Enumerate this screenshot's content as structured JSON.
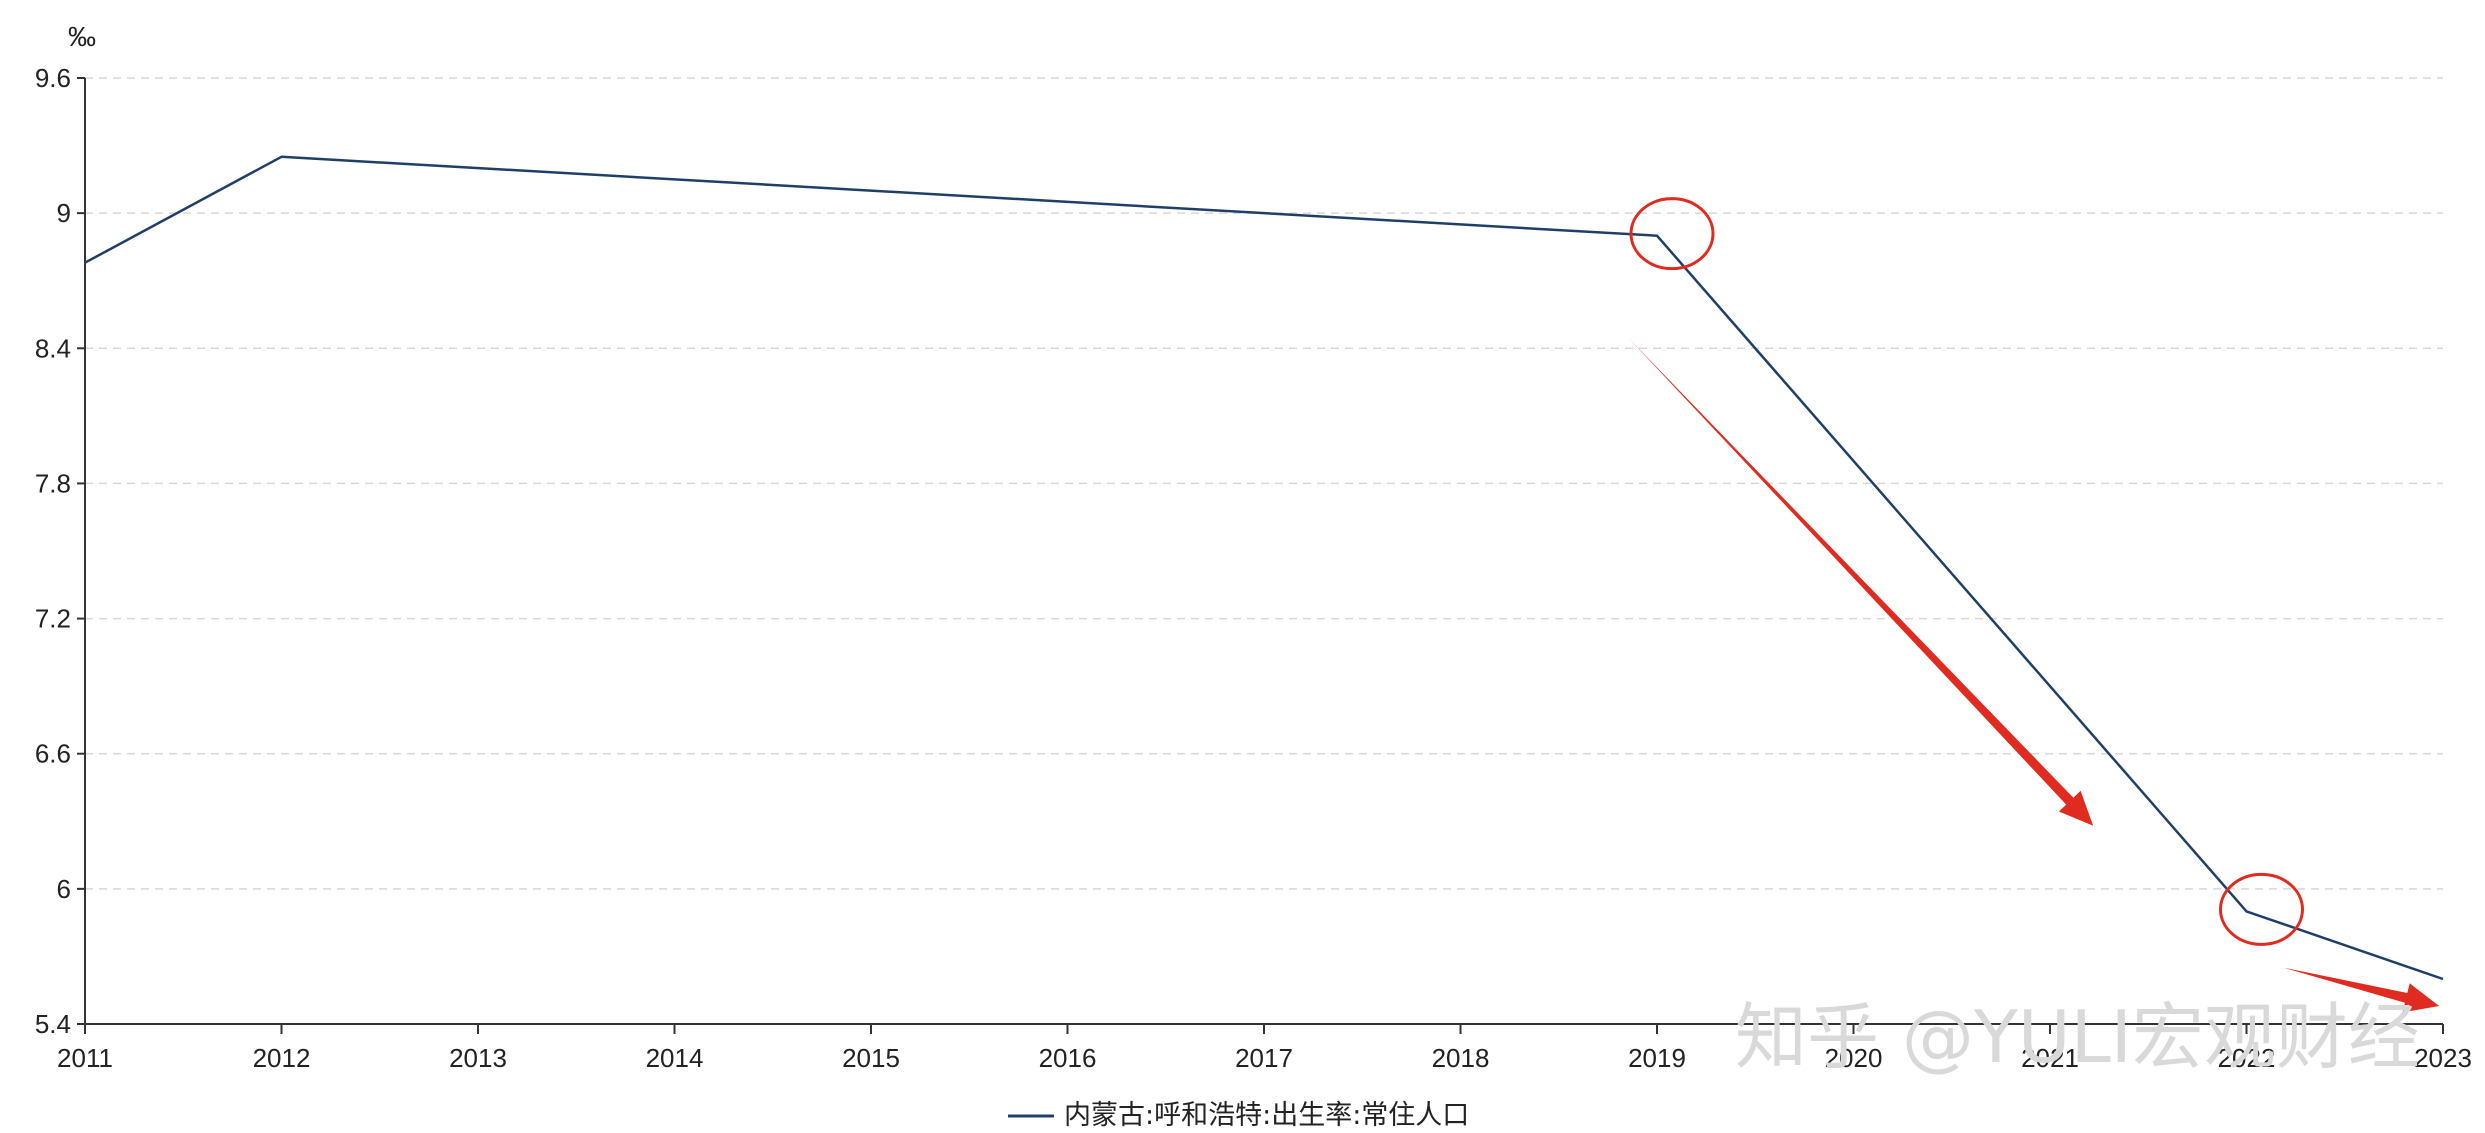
{
  "chart_data": {
    "type": "line",
    "ylabel": "‰",
    "x": [
      "2011",
      "2012",
      "2013",
      "2014",
      "2015",
      "2016",
      "2017",
      "2018",
      "2019",
      "2020",
      "2021",
      "2022",
      "2023"
    ],
    "x_numeric": [
      2011,
      2012,
      2013,
      2014,
      2015,
      2016,
      2017,
      2018,
      2019,
      2020,
      2021,
      2022,
      2023
    ],
    "ylim": [
      5.4,
      9.6
    ],
    "yticks": [
      "5.4",
      "6",
      "6.6",
      "7.2",
      "7.8",
      "8.4",
      "9",
      "9.6"
    ],
    "grid": true,
    "legend_position": "bottom-center",
    "series": [
      {
        "name": "内蒙古:呼和浩特:出生率:常住人口",
        "color": "#1f3f68",
        "points": [
          {
            "x": 2011,
            "y": 8.78
          },
          {
            "x": 2012,
            "y": 9.25
          },
          {
            "x": 2019,
            "y": 8.9
          },
          {
            "x": 2022,
            "y": 5.9
          },
          {
            "x": 2023,
            "y": 5.6
          }
        ]
      }
    ],
    "annotations": {
      "highlight_color": "#e02b20",
      "circles": [
        {
          "x": 2019,
          "y": 8.9
        },
        {
          "x": 2022,
          "y": 5.9
        }
      ],
      "arrows": [
        {
          "from": {
            "x": 2018.85,
            "y": 8.45
          },
          "to": {
            "x": 2021.22,
            "y": 6.28
          }
        },
        {
          "from": {
            "x": 2022.19,
            "y": 5.65
          },
          "to": {
            "x": 2022.98,
            "y": 5.48
          }
        }
      ]
    }
  },
  "watermark": "知乎 @YULI宏观财经"
}
